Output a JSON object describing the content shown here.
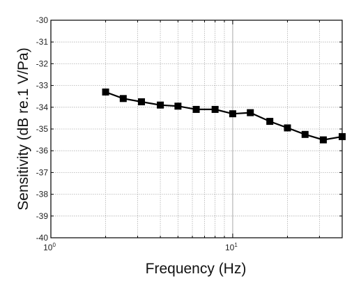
{
  "chart_data": {
    "type": "line",
    "xlabel": "Frequency (Hz)",
    "ylabel": "Sensitivity (dB re.1 V/Pa)",
    "xscale": "log",
    "xlim": [
      1,
      40
    ],
    "ylim": [
      -40,
      -30
    ],
    "x_ticks": [
      {
        "base": "10",
        "exp": "0"
      },
      {
        "base": "10",
        "exp": "1"
      }
    ],
    "y_ticks": [
      "-30",
      "-31",
      "-32",
      "-33",
      "-34",
      "-35",
      "-36",
      "-37",
      "-38",
      "-39",
      "-40"
    ],
    "grid": true,
    "marker": "square",
    "series": [
      {
        "x": [
          2,
          2.5,
          3.15,
          4,
          5,
          6.3,
          8,
          10,
          12.5,
          16,
          20,
          25,
          31.5,
          40
        ],
        "y": [
          -33.3,
          -33.6,
          -33.75,
          -33.9,
          -33.95,
          -34.1,
          -34.1,
          -34.3,
          -34.25,
          -34.65,
          -34.95,
          -35.25,
          -35.5,
          -35.35
        ]
      }
    ]
  },
  "colors": {
    "line": "#000000",
    "marker": "#000000",
    "grid": "#b0b0b0",
    "frame": "#000000"
  }
}
